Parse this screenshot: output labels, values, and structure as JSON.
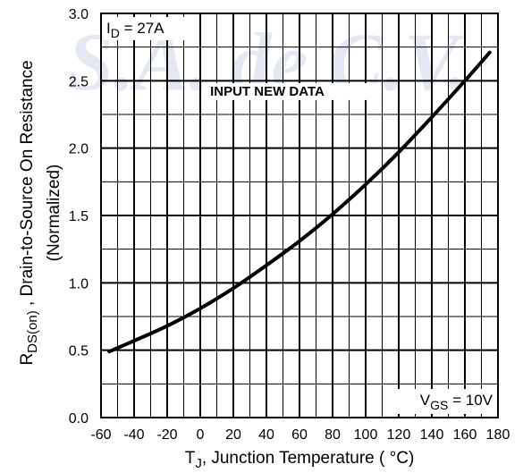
{
  "chart_data": {
    "type": "line",
    "watermark": "S.A. de C.V.",
    "annotation": "INPUT NEW DATA",
    "condition_id": {
      "main": "I",
      "sub": "D",
      "rest": " = 27A"
    },
    "condition_vgs": {
      "main": "V",
      "sub": "GS",
      "rest": " = 10V"
    },
    "xlabel": {
      "main": "T",
      "sub": "J",
      "rest": ", Junction Temperature ( °C)"
    },
    "ylabel": {
      "main": "R",
      "sub": "DS(on)",
      "rest": " , Drain-to-Source On Resistance",
      "line2": "(Normalized)"
    },
    "xlim": [
      -60,
      180
    ],
    "ylim": [
      0,
      3.0
    ],
    "x_ticks": [
      "-60",
      "-40",
      "-20",
      "0",
      "20",
      "40",
      "60",
      "80",
      "100",
      "120",
      "140",
      "160",
      "180"
    ],
    "y_ticks": [
      "0.0",
      "0.5",
      "1.0",
      "1.5",
      "2.0",
      "2.5",
      "3.0"
    ],
    "grid": true,
    "series": [
      {
        "x": [
          -55,
          -40,
          -20,
          0,
          20,
          40,
          60,
          80,
          100,
          120,
          140,
          160,
          175
        ],
        "values": [
          0.49,
          0.57,
          0.68,
          0.81,
          0.96,
          1.13,
          1.31,
          1.51,
          1.73,
          1.97,
          2.23,
          2.5,
          2.71
        ]
      }
    ]
  }
}
